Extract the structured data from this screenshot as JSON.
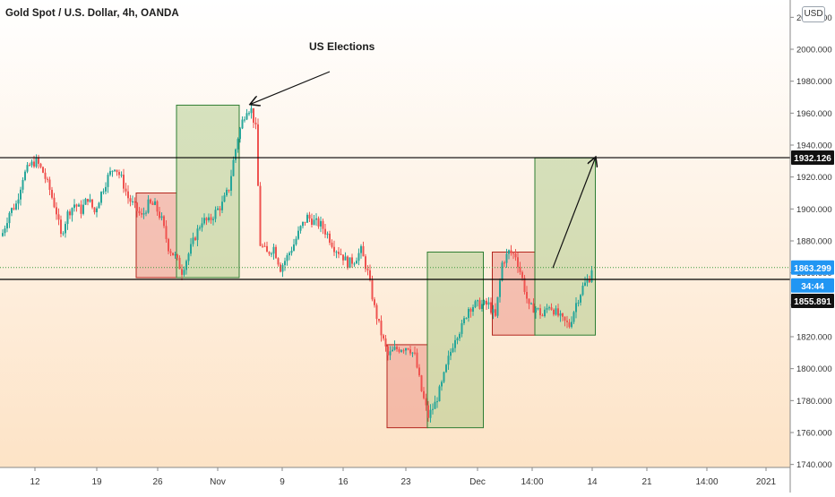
{
  "header": {
    "symbol_line": "Gold Spot / U.S. Dollar, 4h, OANDA",
    "currency_badge": "USD"
  },
  "annotations": {
    "event_label": "US Elections"
  },
  "colors": {
    "bg_top": "#ffffff",
    "bg_bottom": "#fde3c6",
    "up_candle": "#26a69a",
    "down_candle": "#ef5350",
    "green_box": "#a5c57f",
    "red_box": "#e8857a",
    "level_line": "#000000",
    "current_price_line": "#3d9a3d"
  },
  "chart_data": {
    "type": "candlestick",
    "title": "Gold Spot / U.S. Dollar, 4h, OANDA",
    "currency": "USD",
    "y_axis": {
      "range": [
        1740,
        2020
      ],
      "tick_labels": [
        "1740.000",
        "1760.000",
        "1780.000",
        "1800.000",
        "1820.000",
        "1840.000",
        "1860.000",
        "1880.000",
        "1900.000",
        "1920.000",
        "1940.000",
        "1960.000",
        "1980.000",
        "2000.000",
        "2020.000"
      ]
    },
    "x_axis": {
      "tick_labels": [
        "12",
        "19",
        "26",
        "Nov",
        "9",
        "16",
        "23",
        "Dec",
        "14:00",
        "14",
        "21",
        "14:00",
        "2021"
      ]
    },
    "price_labels": [
      {
        "value": "1932.126",
        "style": "black"
      },
      {
        "value": "1863.299",
        "style": "blue"
      },
      {
        "value": "34:44",
        "style": "blue"
      },
      {
        "value": "1855.891",
        "style": "black"
      }
    ],
    "horizontal_levels": [
      1932.126,
      1855.891
    ],
    "current_price": 1863.299,
    "price_path": [
      [
        0,
        1885
      ],
      [
        3,
        1898
      ],
      [
        6,
        1903
      ],
      [
        9,
        1920
      ],
      [
        12,
        1927
      ],
      [
        15,
        1930
      ],
      [
        18,
        1923
      ],
      [
        21,
        1912
      ],
      [
        24,
        1898
      ],
      [
        26,
        1883
      ],
      [
        29,
        1897
      ],
      [
        32,
        1903
      ],
      [
        35,
        1899
      ],
      [
        38,
        1907
      ],
      [
        41,
        1898
      ],
      [
        44,
        1910
      ],
      [
        47,
        1920
      ],
      [
        50,
        1927
      ],
      [
        53,
        1919
      ],
      [
        56,
        1907
      ],
      [
        59,
        1901
      ],
      [
        62,
        1895
      ],
      [
        65,
        1903
      ],
      [
        68,
        1902
      ],
      [
        71,
        1893
      ],
      [
        74,
        1876
      ],
      [
        77,
        1870
      ],
      [
        80,
        1861
      ],
      [
        83,
        1872
      ],
      [
        86,
        1883
      ],
      [
        89,
        1893
      ],
      [
        92,
        1892
      ],
      [
        95,
        1898
      ],
      [
        98,
        1903
      ],
      [
        101,
        1913
      ],
      [
        103,
        1930
      ],
      [
        105,
        1945
      ],
      [
        107,
        1955
      ],
      [
        109,
        1963
      ],
      [
        111,
        1962
      ],
      [
        113,
        1950
      ],
      [
        115,
        1878
      ],
      [
        118,
        1872
      ],
      [
        121,
        1876
      ],
      [
        124,
        1863
      ],
      [
        127,
        1870
      ],
      [
        130,
        1878
      ],
      [
        133,
        1888
      ],
      [
        136,
        1895
      ],
      [
        139,
        1892
      ],
      [
        142,
        1890
      ],
      [
        145,
        1884
      ],
      [
        148,
        1876
      ],
      [
        151,
        1872
      ],
      [
        154,
        1866
      ],
      [
        157,
        1868
      ],
      [
        160,
        1874
      ],
      [
        163,
        1860
      ],
      [
        166,
        1838
      ],
      [
        169,
        1822
      ],
      [
        172,
        1808
      ],
      [
        175,
        1812
      ],
      [
        178,
        1813
      ],
      [
        181,
        1814
      ],
      [
        184,
        1808
      ],
      [
        187,
        1786
      ],
      [
        190,
        1770
      ],
      [
        193,
        1778
      ],
      [
        196,
        1790
      ],
      [
        199,
        1806
      ],
      [
        202,
        1820
      ],
      [
        205,
        1826
      ],
      [
        208,
        1838
      ],
      [
        211,
        1840
      ],
      [
        214,
        1840
      ],
      [
        217,
        1840
      ],
      [
        220,
        1832
      ],
      [
        223,
        1866
      ],
      [
        226,
        1873
      ],
      [
        229,
        1871
      ],
      [
        232,
        1856
      ],
      [
        235,
        1838
      ],
      [
        238,
        1838
      ],
      [
        241,
        1833
      ],
      [
        244,
        1840
      ],
      [
        247,
        1835
      ],
      [
        250,
        1830
      ],
      [
        253,
        1827
      ],
      [
        256,
        1841
      ],
      [
        259,
        1851
      ],
      [
        262,
        1857
      ],
      [
        263,
        1863
      ]
    ],
    "boxes": [
      {
        "color": "red",
        "x0": 60,
        "x1": 78,
        "y_top": 1910,
        "y_bottom": 1857
      },
      {
        "color": "green",
        "x0": 78,
        "x1": 106,
        "y_top": 1965,
        "y_bottom": 1857
      },
      {
        "color": "red",
        "x0": 172,
        "x1": 190,
        "y_top": 1815,
        "y_bottom": 1763
      },
      {
        "color": "green",
        "x0": 190,
        "x1": 215,
        "y_top": 1873,
        "y_bottom": 1763
      },
      {
        "color": "red",
        "x0": 219,
        "x1": 238,
        "y_top": 1873,
        "y_bottom": 1821
      },
      {
        "color": "green",
        "x0": 238,
        "x1": 265,
        "y_top": 1932,
        "y_bottom": 1821
      }
    ],
    "projection_arrow": {
      "from": [
        246,
        1863
      ],
      "to": [
        265,
        1932
      ]
    },
    "event_arrow_target": [
      110,
      1964
    ]
  }
}
